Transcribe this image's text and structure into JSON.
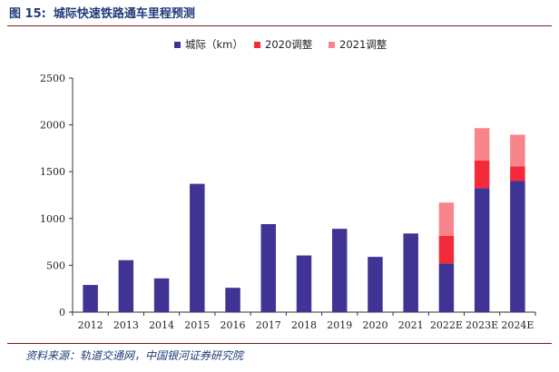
{
  "figure": {
    "label": "图 15:",
    "title": "城际快速铁路通车里程预测",
    "source": "资料来源：轨道交通网，中国银河证券研究院"
  },
  "chart_data": {
    "type": "bar",
    "stacked": true,
    "categories": [
      "2012",
      "2013",
      "2014",
      "2015",
      "2016",
      "2017",
      "2018",
      "2019",
      "2020",
      "2021",
      "2022E",
      "2023E",
      "2024E"
    ],
    "series": [
      {
        "name": "城际（km）",
        "color": "#3f3494",
        "values": [
          290,
          555,
          360,
          1370,
          260,
          940,
          605,
          890,
          590,
          840,
          520,
          1325,
          1400
        ]
      },
      {
        "name": "2020调整",
        "color": "#f42a3a",
        "values": [
          0,
          0,
          0,
          0,
          0,
          0,
          0,
          0,
          0,
          0,
          295,
          295,
          155
        ]
      },
      {
        "name": "2021调整",
        "color": "#f9858c",
        "values": [
          0,
          0,
          0,
          0,
          0,
          0,
          0,
          0,
          0,
          0,
          355,
          345,
          340
        ]
      }
    ],
    "ylim": [
      0,
      2500
    ],
    "yticks": [
      "0",
      "500",
      "1000",
      "1500",
      "2000",
      "2500"
    ],
    "ytick_values": [
      0,
      500,
      1000,
      1500,
      2000,
      2500
    ],
    "legend_position": "top",
    "grid": false
  }
}
